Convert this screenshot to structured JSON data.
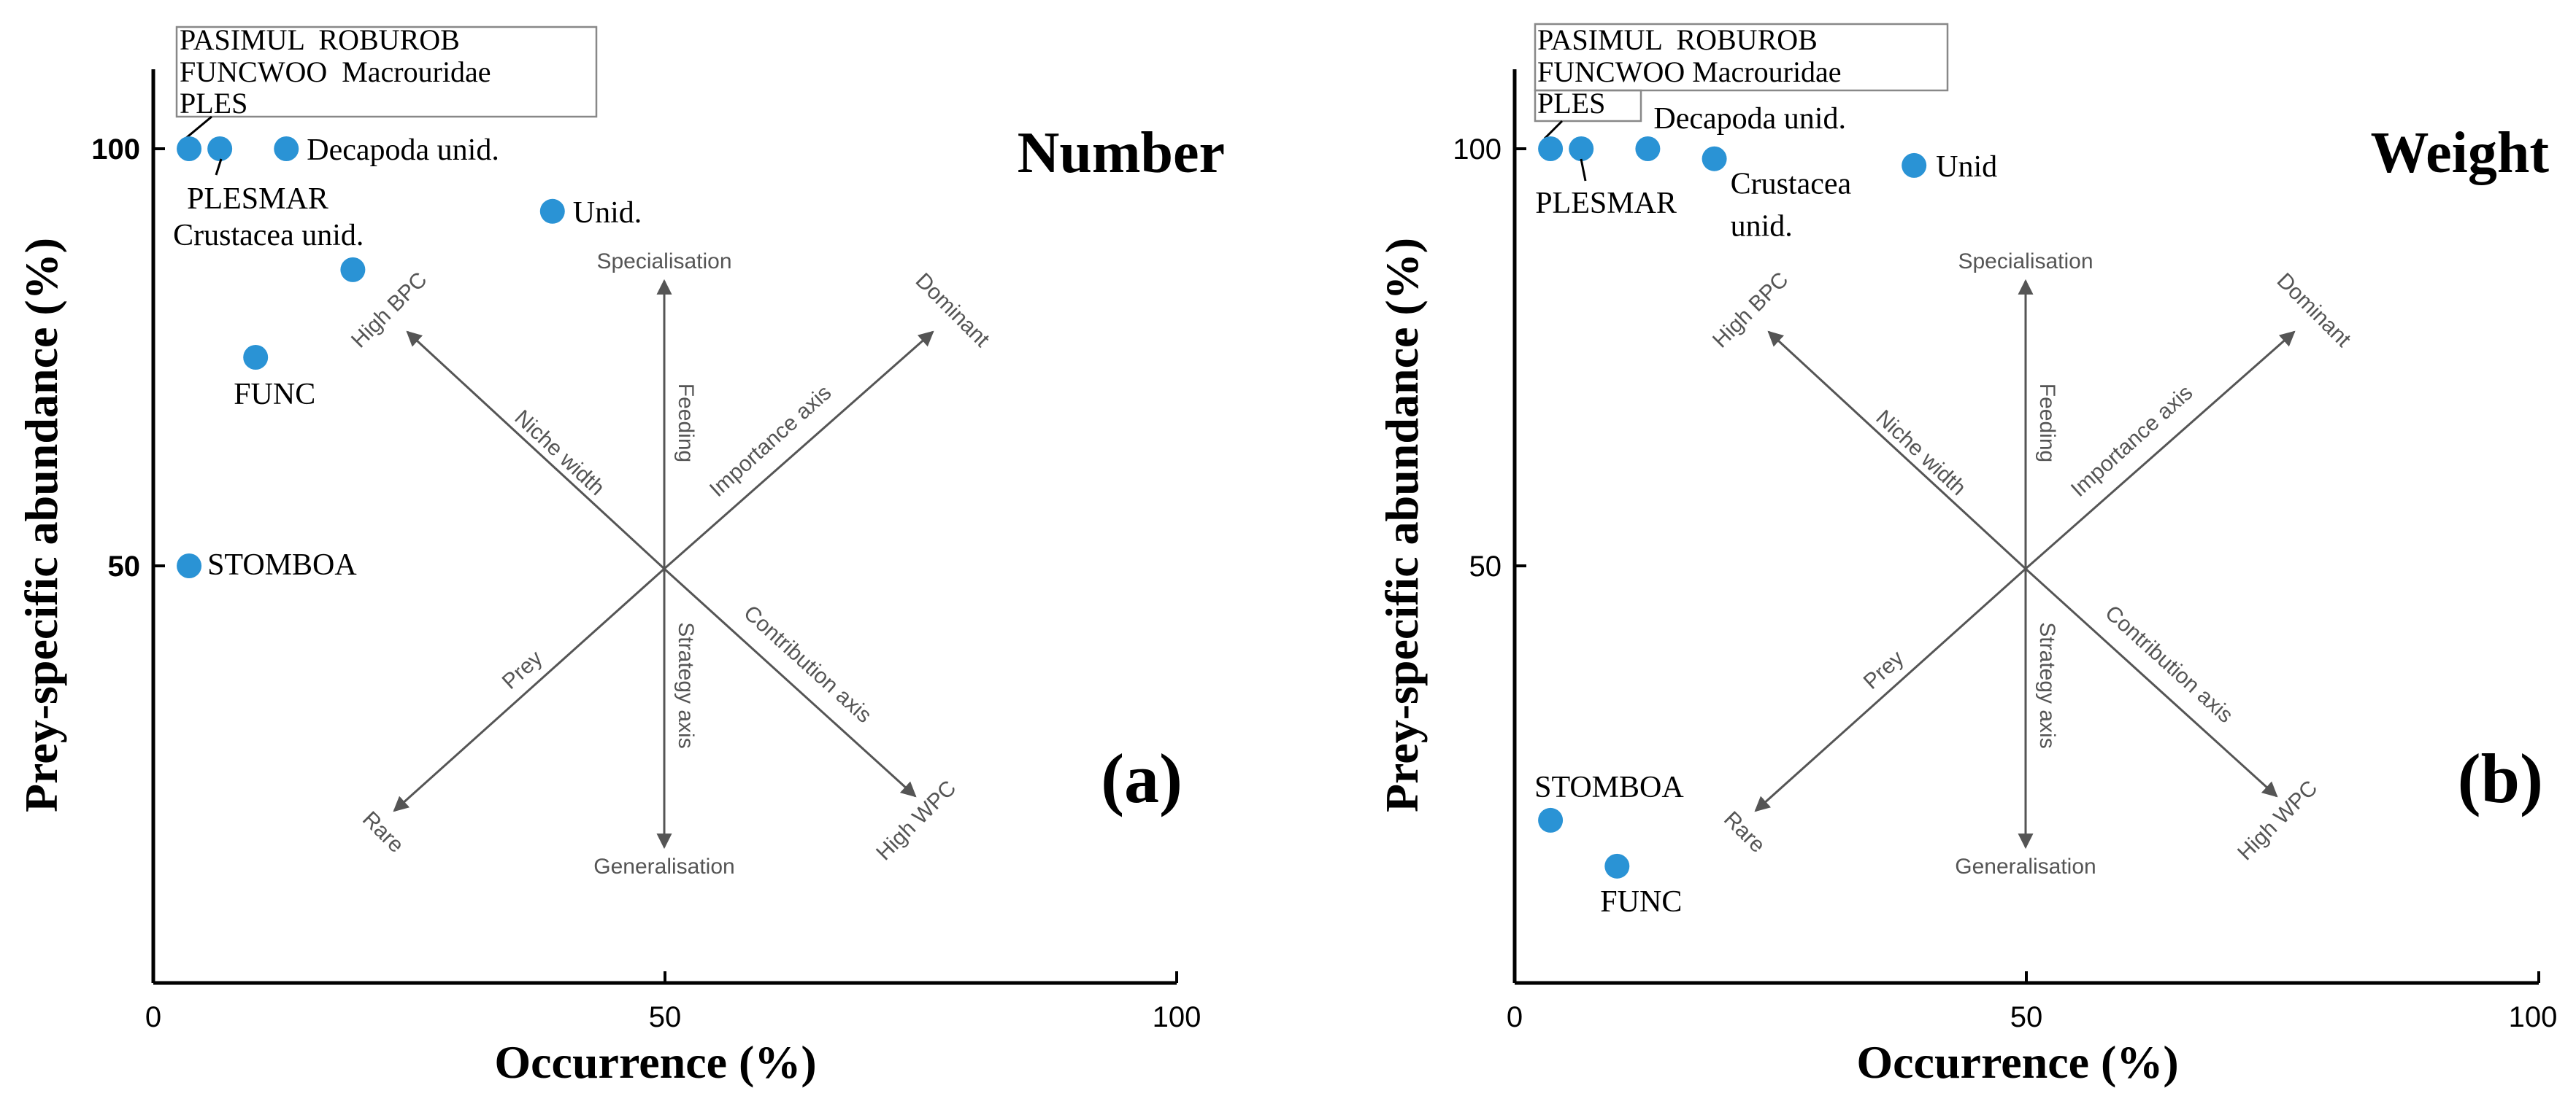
{
  "colors": {
    "point": "#2a93d5",
    "axis": "#000000",
    "guide": "#555555",
    "label_box": "#888888"
  },
  "chart_data": [
    {
      "type": "scatter",
      "panel_label": "(a)",
      "corner_title": "Number",
      "xlabel": "Occurrence (%)",
      "ylabel": "Prey-specific abundance (%)",
      "xlim": [
        0,
        100
      ],
      "ylim": [
        0,
        110
      ],
      "xticks": [
        "0",
        "50",
        "100"
      ],
      "yticks": [
        "50",
        "100"
      ],
      "points": [
        {
          "label": "PLES",
          "x": 3.5,
          "y": 100
        },
        {
          "label": "PLESMAR",
          "x": 6.5,
          "y": 100
        },
        {
          "label": "Decapoda unid.",
          "x": 13,
          "y": 100
        },
        {
          "label": "Unid.",
          "x": 39,
          "y": 92.5
        },
        {
          "label": "Crustacea unid.",
          "x": 19.5,
          "y": 85.5
        },
        {
          "label": "FUNC",
          "x": 10,
          "y": 75
        },
        {
          "label": "STOMBOA",
          "x": 3.5,
          "y": 50
        }
      ],
      "boxed_labels": [
        "PASIMUL  ROBUROB",
        "FUNCWOO  Macrouridae",
        "PLES"
      ]
    },
    {
      "type": "scatter",
      "panel_label": "(b)",
      "corner_title": "Weight",
      "xlabel": "Occurrence (%)",
      "ylabel": "Prey-specific abundance (%)",
      "xlim": [
        0,
        100
      ],
      "ylim": [
        0,
        110
      ],
      "xticks": [
        "0",
        "50",
        "100"
      ],
      "yticks": [
        "50",
        "100"
      ],
      "points": [
        {
          "label": "PLES",
          "x": 3.5,
          "y": 100
        },
        {
          "label": "PLESMAR",
          "x": 6.5,
          "y": 100
        },
        {
          "label": "Decapoda unid.",
          "x": 13,
          "y": 100
        },
        {
          "label": "Crustacea unid.",
          "x": 19.5,
          "y": 98.8
        },
        {
          "label": "Unid",
          "x": 39,
          "y": 98
        },
        {
          "label": "STOMBOA",
          "x": 3.5,
          "y": 19.5
        },
        {
          "label": "FUNC",
          "x": 10,
          "y": 14
        }
      ],
      "boxed_labels": [
        "PASIMUL  ROBUROB",
        "FUNCWOO Macrouridae",
        "PLES"
      ]
    }
  ],
  "interpretation_overlay": {
    "specialisation": "Specialisation",
    "generalisation": "Generalisation",
    "feeding": "Feeding",
    "strategy_axis": "Strategy axis",
    "high_bpc": "High BPC",
    "niche_width": "Niche width",
    "dominant": "Dominant",
    "importance_axis": "Importance axis",
    "prey": "Prey",
    "rare": "Rare",
    "contribution_axis": "Contribution axis",
    "high_wpc": "High WPC"
  }
}
